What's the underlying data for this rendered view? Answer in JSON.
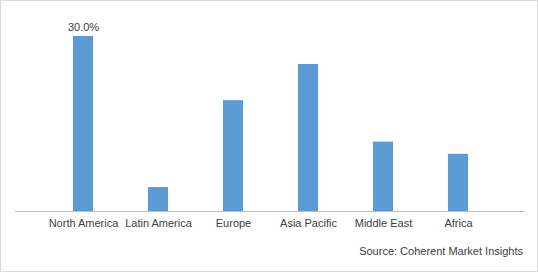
{
  "chart_data": {
    "type": "bar",
    "categories": [
      "North America",
      "Latin America",
      "Europe",
      "Asia Pacific",
      "Middle East",
      "Africa"
    ],
    "values": [
      30.0,
      4.1,
      19.0,
      25.2,
      11.9,
      9.8
    ],
    "value_labels": [
      "30.0%",
      null,
      null,
      null,
      null,
      null
    ],
    "data_labels": true,
    "color": "#5b9bd5",
    "ylim": [
      0,
      30
    ],
    "tick_labels": "x",
    "grid": false,
    "source": "Source: Coherent Market Insights"
  }
}
